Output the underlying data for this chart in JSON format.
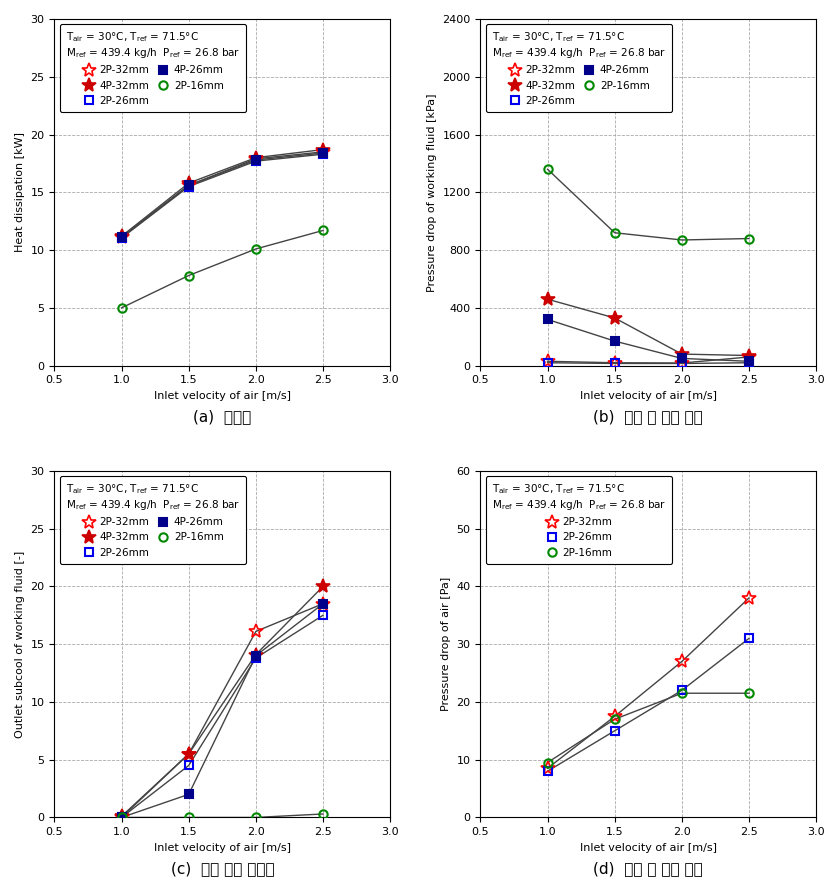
{
  "x": [
    1.0,
    1.5,
    2.0,
    2.5
  ],
  "xlim": [
    0.5,
    3.0
  ],
  "xticks": [
    0.5,
    1.0,
    1.5,
    2.0,
    2.5,
    3.0
  ],
  "plot_a": {
    "ylabel": "Heat dissipation [kW]",
    "ylim": [
      0,
      30
    ],
    "yticks": [
      0,
      5,
      10,
      15,
      20,
      25,
      30
    ],
    "series": {
      "2P-32mm": [
        11.1,
        15.6,
        17.9,
        18.5
      ],
      "4P-32mm": [
        11.2,
        15.8,
        18.0,
        18.7
      ],
      "2P-26mm": [
        11.05,
        15.5,
        17.7,
        18.3
      ],
      "4P-26mm": [
        11.15,
        15.6,
        17.8,
        18.4
      ],
      "2P-16mm": [
        5.0,
        7.8,
        10.1,
        11.7
      ]
    },
    "caption": "(a)  방열량"
  },
  "plot_b": {
    "ylabel": "Pressure drop of working fluid [kPa]",
    "ylim": [
      0,
      2400
    ],
    "yticks": [
      0,
      400,
      800,
      1200,
      1600,
      2000,
      2400
    ],
    "series": {
      "2P-32mm": [
        30,
        20,
        18,
        60
      ],
      "4P-32mm": [
        460,
        330,
        80,
        70
      ],
      "2P-26mm": [
        20,
        15,
        15,
        20
      ],
      "4P-26mm": [
        320,
        170,
        50,
        30
      ],
      "2P-16mm": [
        1360,
        920,
        870,
        880
      ]
    },
    "caption": "(b)  냉매 측 압력 손실"
  },
  "plot_c": {
    "ylabel": "Outlet subcool of working fluid [-]",
    "ylim": [
      0,
      30
    ],
    "yticks": [
      0,
      5,
      10,
      15,
      20,
      25,
      30
    ],
    "series": {
      "2P-32mm": [
        0.0,
        5.5,
        16.1,
        18.5
      ],
      "4P-32mm": [
        0.1,
        5.5,
        14.1,
        20.0
      ],
      "2P-26mm": [
        0.0,
        4.5,
        13.8,
        17.5
      ],
      "4P-26mm": [
        0.0,
        2.0,
        14.0,
        18.5
      ],
      "2P-16mm": [
        0.0,
        0.0,
        0.0,
        0.3
      ]
    },
    "caption": "(c)  냉매 출구 과냉도"
  },
  "plot_d": {
    "ylabel": "Pressure drop of air [Pa]",
    "ylim": [
      0,
      60
    ],
    "yticks": [
      0,
      10,
      20,
      30,
      40,
      50,
      60
    ],
    "series": {
      "2P-32mm": [
        8.5,
        17.5,
        27.0,
        38.0
      ],
      "2P-26mm": [
        8.0,
        15.0,
        22.0,
        31.0
      ],
      "2P-16mm": [
        9.5,
        17.0,
        21.5,
        21.5
      ]
    },
    "caption": "(d)  공기 측 압력 손실"
  },
  "colors": {
    "2P-32mm": "#FF0000",
    "4P-32mm": "#CC0000",
    "2P-26mm": "#0000EE",
    "4P-26mm": "#00008B",
    "2P-16mm": "#008800"
  },
  "line_color": "#444444",
  "bg_color": "#FFFFFF",
  "grid_color": "#AAAAAA"
}
